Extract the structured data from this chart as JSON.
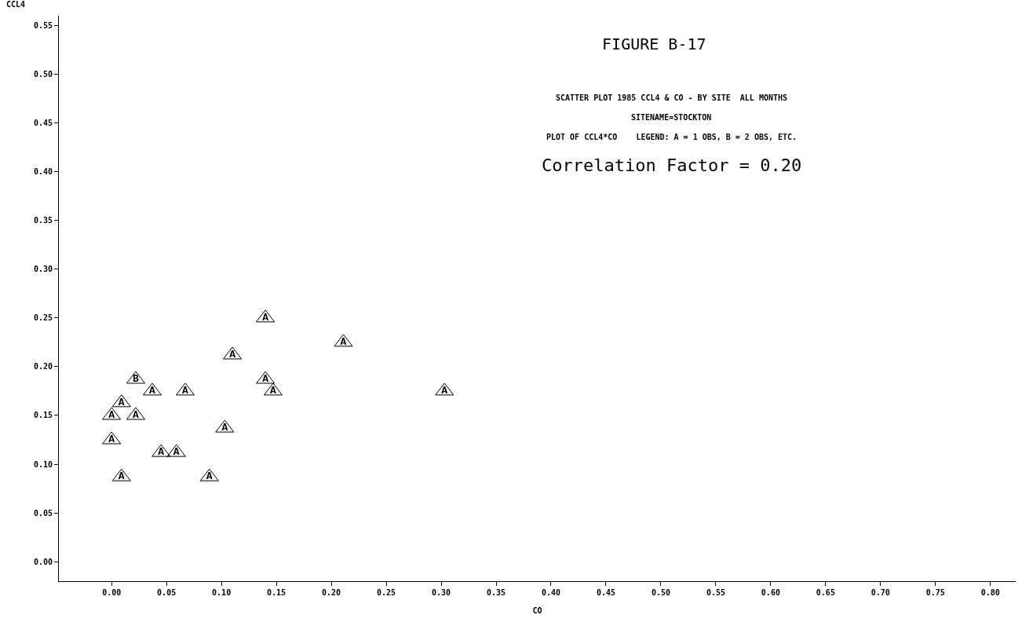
{
  "chart_data": {
    "type": "scatter",
    "title": "FIGURE B-17",
    "subtitle": "SCATTER PLOT 1985 CCL4 & CO - BY SITE  ALL MONTHS",
    "annotations": [
      "SITENAME=STOCKTON",
      "PLOT OF CCL4*CO    LEGEND: A = 1 OBS, B = 2 OBS, ETC.",
      "Correlation Factor = 0.20"
    ],
    "xlabel": "CO",
    "ylabel": "CCL4",
    "marker": "triangle",
    "grid": false,
    "series": [
      {
        "color": "#000000",
        "x": [
          0.14,
          0.211,
          0.11,
          0.022,
          0.037,
          0.067,
          0.14,
          0.147,
          0.303,
          0.009,
          0.0,
          0.022,
          0.0,
          0.103,
          0.045,
          0.059,
          0.009,
          0.089
        ],
        "values": [
          0.25,
          0.225,
          0.212,
          0.187,
          0.175,
          0.175,
          0.187,
          0.175,
          0.175,
          0.163,
          0.15,
          0.15,
          0.125,
          0.137,
          0.112,
          0.112,
          0.087,
          0.087
        ],
        "value_labels": [
          "A",
          "A",
          "A",
          "B",
          "A",
          "A",
          "A",
          "A",
          "A",
          "A",
          "A",
          "A",
          "A",
          "A",
          "A",
          "A",
          "A",
          "A"
        ]
      }
    ],
    "xlim": [
      -0.048,
      0.823
    ],
    "ylim": [
      -0.02,
      0.56
    ],
    "xticks": [
      {
        "value": 0,
        "label": "0.00"
      },
      {
        "value": 0.05,
        "label": "0.05"
      },
      {
        "value": 0.1,
        "label": "0.10"
      },
      {
        "value": 0.15,
        "label": "0.15"
      },
      {
        "value": 0.2,
        "label": "0.20"
      },
      {
        "value": 0.25,
        "label": "0.25"
      },
      {
        "value": 0.3,
        "label": "0.30"
      },
      {
        "value": 0.35,
        "label": "0.35"
      },
      {
        "value": 0.4,
        "label": "0.40"
      },
      {
        "value": 0.45,
        "label": "0.45"
      },
      {
        "value": 0.5,
        "label": "0.50"
      },
      {
        "value": 0.55,
        "label": "0.55"
      },
      {
        "value": 0.6,
        "label": "0.60"
      },
      {
        "value": 0.65,
        "label": "0.65"
      },
      {
        "value": 0.7,
        "label": "0.70"
      },
      {
        "value": 0.75,
        "label": "0.75"
      },
      {
        "value": 0.8,
        "label": "0.80"
      }
    ],
    "yticks": [
      {
        "value": 0,
        "label": "0.00"
      },
      {
        "value": 0.05,
        "label": "0.05"
      },
      {
        "value": 0.1,
        "label": "0.10"
      },
      {
        "value": 0.15,
        "label": "0.15"
      },
      {
        "value": 0.2,
        "label": "0.20"
      },
      {
        "value": 0.25,
        "label": "0.25"
      },
      {
        "value": 0.3,
        "label": "0.30"
      },
      {
        "value": 0.35,
        "label": "0.35"
      },
      {
        "value": 0.4,
        "label": "0.40"
      },
      {
        "value": 0.45,
        "label": "0.45"
      },
      {
        "value": 0.5,
        "label": "0.50"
      },
      {
        "value": 0.55,
        "label": "0.55"
      }
    ]
  }
}
